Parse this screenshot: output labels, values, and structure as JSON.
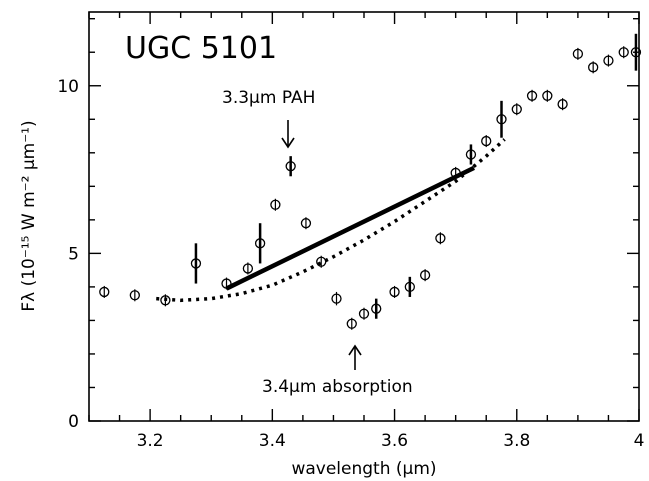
{
  "chart_data": {
    "type": "scatter",
    "title": "UGC 5101",
    "xlabel": "wavelength (μm)",
    "ylabel": "Fλ (10⁻¹⁵ W m⁻² μm⁻¹)",
    "xlim": [
      3.1,
      4.0
    ],
    "ylim": [
      0,
      12.2
    ],
    "x_ticks": [
      "3.2",
      "3.4",
      "3.6",
      "3.8",
      "4"
    ],
    "y_ticks": [
      "0",
      "5",
      "10"
    ],
    "grid": false,
    "series": [
      {
        "kind": "points",
        "points": [
          {
            "x": 3.125,
            "y": 3.85,
            "err": 0.05
          },
          {
            "x": 3.175,
            "y": 3.75,
            "err": 0.05
          },
          {
            "x": 3.225,
            "y": 3.6,
            "err": 0.05
          },
          {
            "x": 3.275,
            "y": 4.7,
            "err": 0.6
          },
          {
            "x": 3.325,
            "y": 4.1,
            "err": 0.1
          },
          {
            "x": 3.36,
            "y": 4.55,
            "err": 0.05
          },
          {
            "x": 3.38,
            "y": 5.3,
            "err": 0.6
          },
          {
            "x": 3.405,
            "y": 6.45,
            "err": 0.05
          },
          {
            "x": 3.43,
            "y": 7.6,
            "err": 0.3
          },
          {
            "x": 3.455,
            "y": 5.9,
            "err": 0.05
          },
          {
            "x": 3.48,
            "y": 4.75,
            "err": 0.05
          },
          {
            "x": 3.505,
            "y": 3.65,
            "err": 0.2
          },
          {
            "x": 3.53,
            "y": 2.9,
            "err": 0.15
          },
          {
            "x": 3.55,
            "y": 3.2,
            "err": 0.05
          },
          {
            "x": 3.57,
            "y": 3.35,
            "err": 0.3
          },
          {
            "x": 3.6,
            "y": 3.85,
            "err": 0.05
          },
          {
            "x": 3.625,
            "y": 4.0,
            "err": 0.3
          },
          {
            "x": 3.65,
            "y": 4.35,
            "err": 0.05
          },
          {
            "x": 3.675,
            "y": 5.45,
            "err": 0.05
          },
          {
            "x": 3.7,
            "y": 7.4,
            "err": 0.05
          },
          {
            "x": 3.725,
            "y": 7.95,
            "err": 0.3
          },
          {
            "x": 3.75,
            "y": 8.35,
            "err": 0.05
          },
          {
            "x": 3.775,
            "y": 9.0,
            "err": 0.55
          },
          {
            "x": 3.8,
            "y": 9.3,
            "err": 0.05
          },
          {
            "x": 3.825,
            "y": 9.7,
            "err": 0.05
          },
          {
            "x": 3.85,
            "y": 9.7,
            "err": 0.05
          },
          {
            "x": 3.875,
            "y": 9.45,
            "err": 0.05
          },
          {
            "x": 3.9,
            "y": 10.95,
            "err": 0.05
          },
          {
            "x": 3.925,
            "y": 10.55,
            "err": 0.05
          },
          {
            "x": 3.95,
            "y": 10.75,
            "err": 0.05
          },
          {
            "x": 3.975,
            "y": 11.0,
            "err": 0.1
          },
          {
            "x": 3.995,
            "y": 11.0,
            "err": 0.55
          }
        ]
      },
      {
        "kind": "solid-line",
        "x": [
          3.325,
          3.73
        ],
        "y": [
          3.95,
          7.55
        ]
      },
      {
        "kind": "dotted-curve",
        "x": [
          3.21,
          3.25,
          3.3,
          3.35,
          3.4,
          3.45,
          3.5,
          3.55,
          3.6,
          3.65,
          3.7,
          3.75,
          3.78
        ],
        "y": [
          3.65,
          3.6,
          3.65,
          3.8,
          4.05,
          4.45,
          4.9,
          5.4,
          5.95,
          6.55,
          7.15,
          7.9,
          8.4
        ]
      }
    ],
    "annotations": [
      {
        "text": "3.3μm PAH",
        "x": 3.42,
        "y": 9.6,
        "arrow_to": [
          3.42,
          8.2
        ]
      },
      {
        "text": "3.4μm absorption",
        "x": 3.54,
        "y": 1.1,
        "arrow_to": [
          3.54,
          2.35
        ]
      }
    ]
  }
}
